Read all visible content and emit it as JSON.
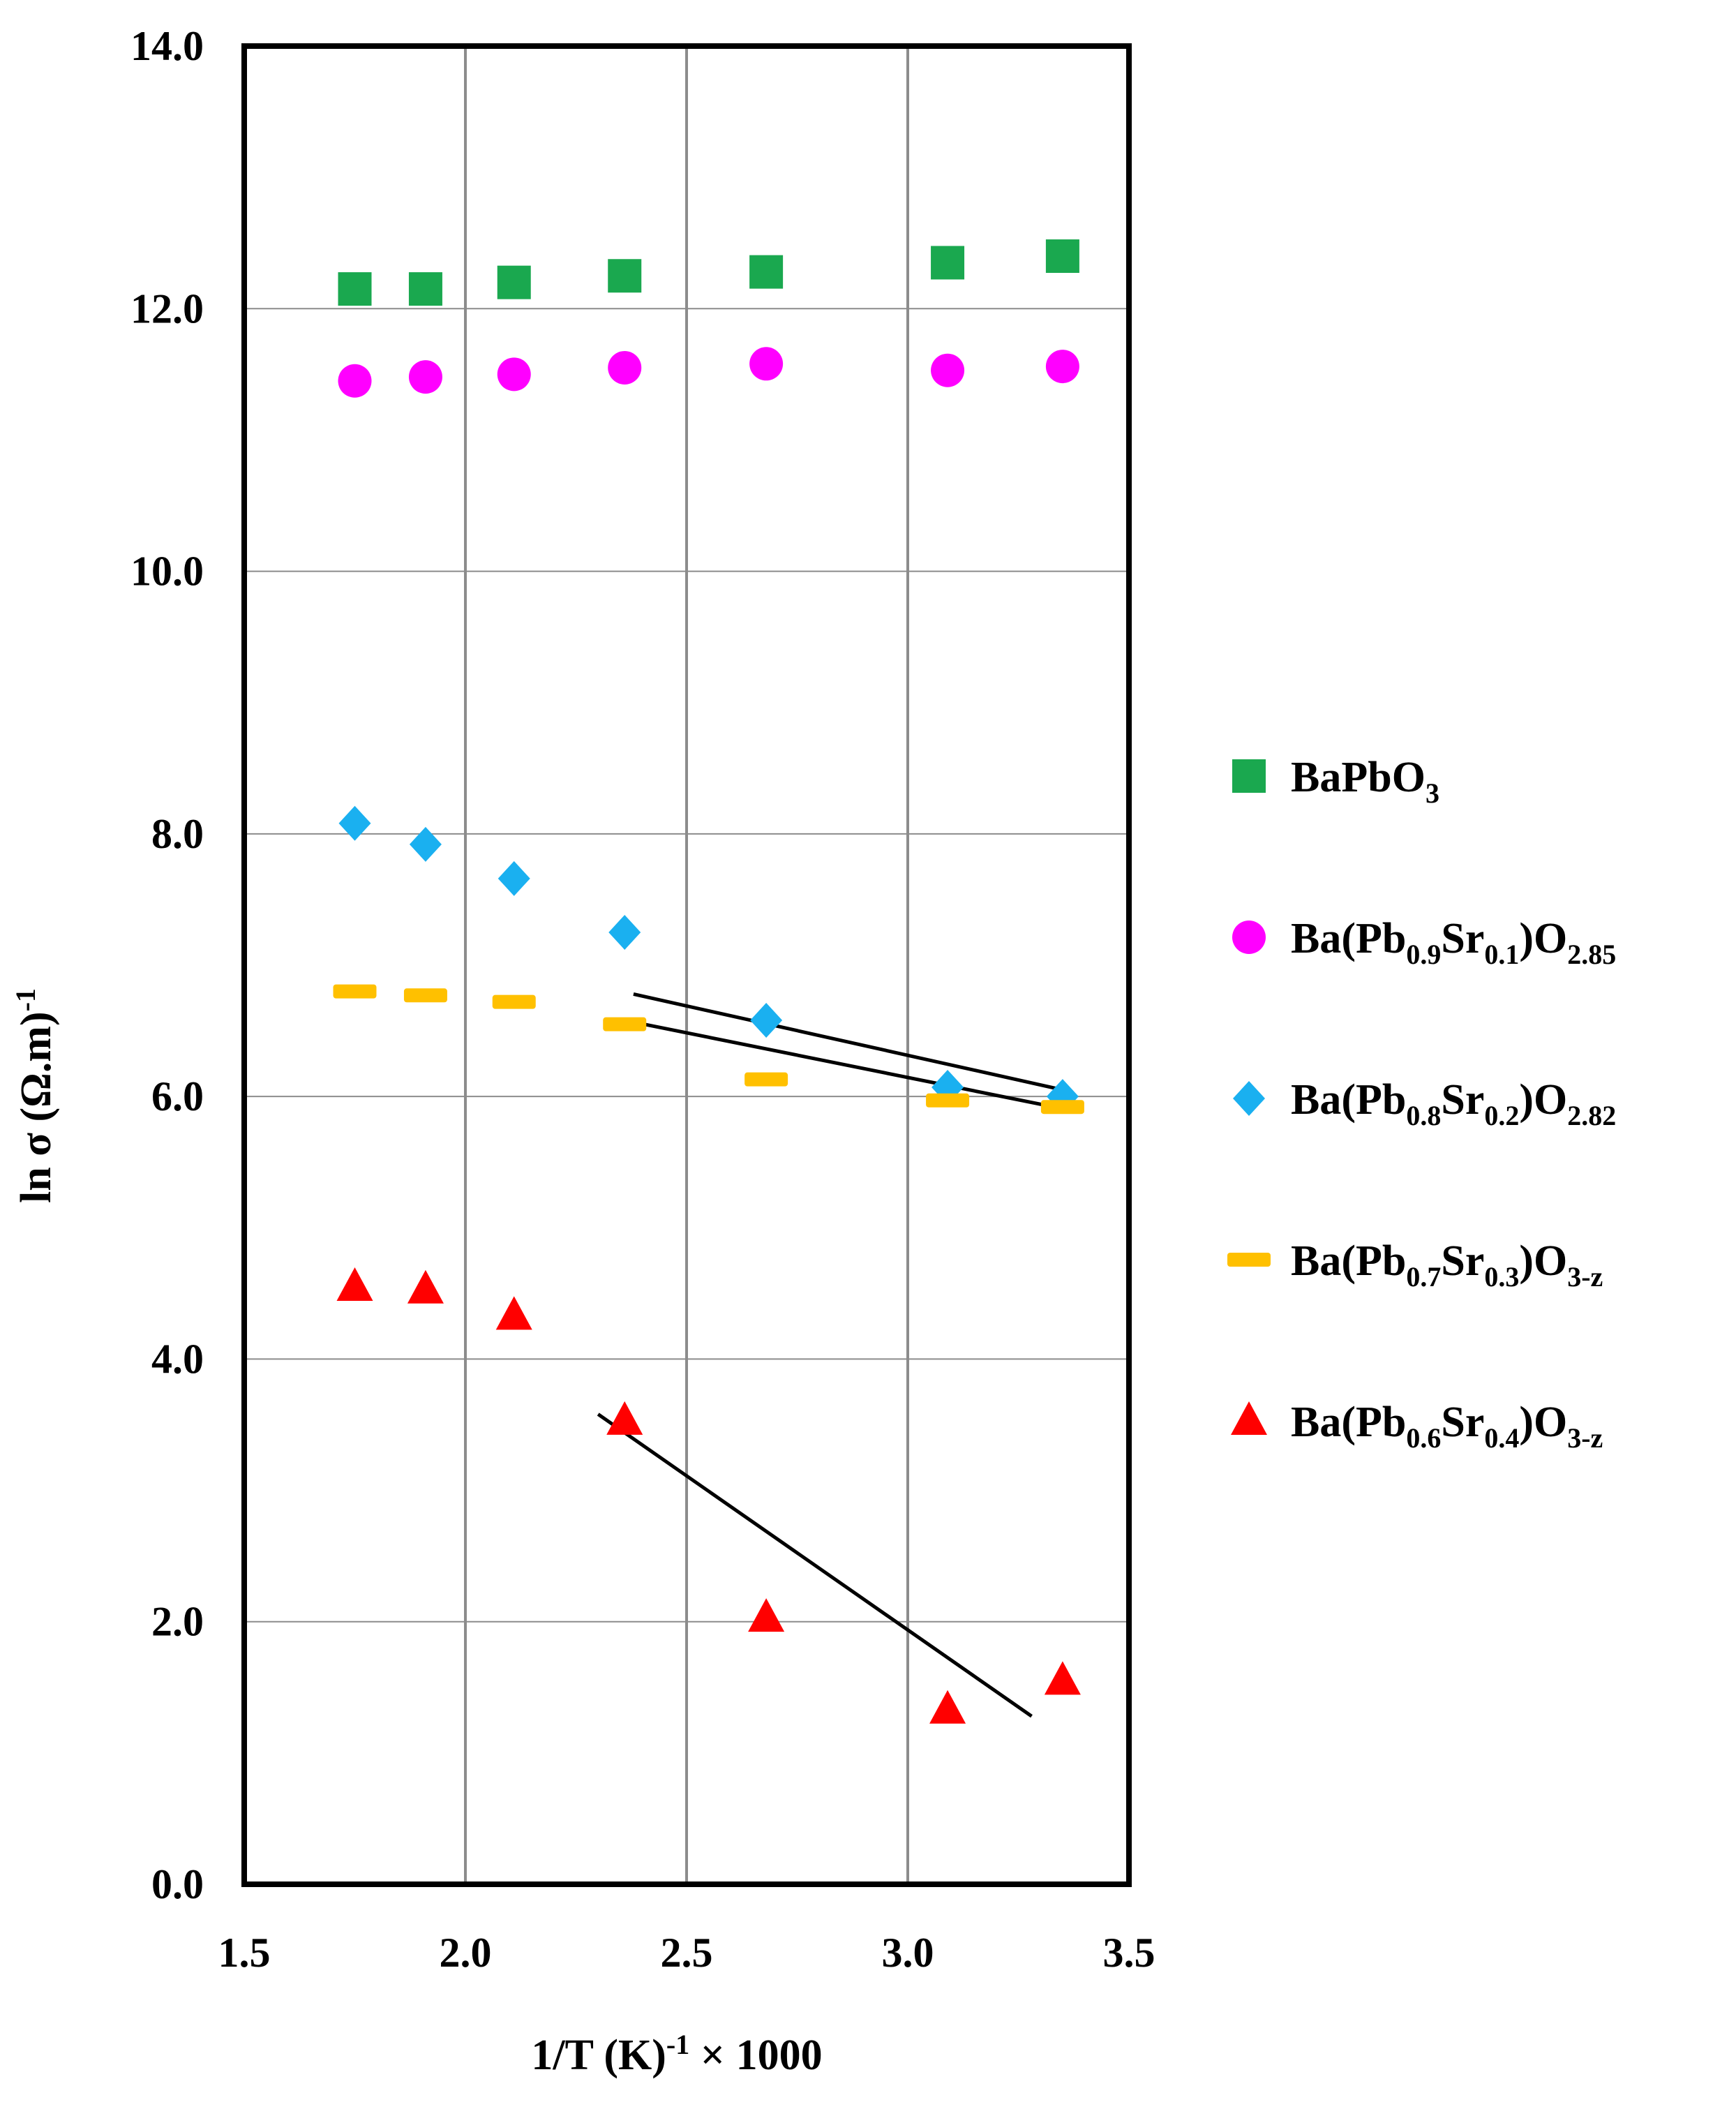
{
  "chart_data": {
    "type": "scatter",
    "title": "",
    "xlabel": {
      "main": "1/T (K)",
      "sup": "-1",
      "suffix": " × 1000"
    },
    "ylabel": {
      "main": "ln σ (Ω.m)",
      "sup": "-1"
    },
    "xlim": [
      1.5,
      3.5
    ],
    "ylim": [
      0.0,
      14.0
    ],
    "xticks": [
      1.5,
      2.0,
      2.5,
      3.0,
      3.5
    ],
    "yticks": [
      0.0,
      2.0,
      4.0,
      6.0,
      8.0,
      10.0,
      12.0,
      14.0
    ],
    "xtick_labels": [
      "1.5",
      "2.0",
      "2.5",
      "3.0",
      "3.5"
    ],
    "ytick_labels": [
      "0.0",
      "2.0",
      "4.0",
      "6.0",
      "8.0",
      "10.0",
      "12.0",
      "14.0"
    ],
    "grid": {
      "vertical": true,
      "horizontal": true
    },
    "legend_position": "right",
    "series": [
      {
        "name": "BaPbO3",
        "label_parts": [
          [
            "BaPbO",
            ""
          ],
          [
            "3",
            "sub"
          ]
        ],
        "marker": "square",
        "color": "#1aa84f",
        "x": [
          1.75,
          1.91,
          2.11,
          2.36,
          2.68,
          3.09,
          3.35
        ],
        "y": [
          12.15,
          12.15,
          12.2,
          12.25,
          12.28,
          12.35,
          12.4
        ]
      },
      {
        "name": "Ba(Pb0.9Sr0.1)O2.85",
        "label_parts": [
          [
            "Ba(Pb",
            ""
          ],
          [
            "0.9",
            "sub"
          ],
          [
            "Sr",
            ""
          ],
          [
            "0.1",
            "sub"
          ],
          [
            ")O",
            ""
          ],
          [
            "2.85",
            "sub"
          ]
        ],
        "marker": "circle",
        "color": "#ff00ff",
        "x": [
          1.75,
          1.91,
          2.11,
          2.36,
          2.68,
          3.09,
          3.35
        ],
        "y": [
          11.45,
          11.48,
          11.5,
          11.55,
          11.58,
          11.53,
          11.56
        ]
      },
      {
        "name": "Ba(Pb0.8Sr0.2)O2.82",
        "label_parts": [
          [
            "Ba(Pb",
            ""
          ],
          [
            "0.8",
            "sub"
          ],
          [
            "Sr",
            ""
          ],
          [
            "0.2",
            "sub"
          ],
          [
            ")O",
            ""
          ],
          [
            "2.82",
            "sub"
          ]
        ],
        "marker": "diamond",
        "color": "#1ab0f0",
        "x": [
          1.75,
          1.91,
          2.11,
          2.36,
          2.68,
          3.09,
          3.35
        ],
        "y": [
          8.08,
          7.92,
          7.66,
          7.25,
          6.58,
          6.07,
          6.0
        ]
      },
      {
        "name": "Ba(Pb0.7Sr0.3)O3-z",
        "label_parts": [
          [
            "Ba(Pb",
            ""
          ],
          [
            "0.7",
            "sub"
          ],
          [
            "Sr",
            ""
          ],
          [
            "0.3",
            "sub"
          ],
          [
            ")O",
            ""
          ],
          [
            "3-z",
            "sub"
          ]
        ],
        "marker": "dash",
        "color": "#ffc000",
        "x": [
          1.75,
          1.91,
          2.11,
          2.36,
          2.68,
          3.09,
          3.35
        ],
        "y": [
          6.8,
          6.77,
          6.72,
          6.55,
          6.13,
          5.97,
          5.92
        ]
      },
      {
        "name": "Ba(Pb0.6Sr0.4)O3-z",
        "label_parts": [
          [
            "Ba(Pb",
            ""
          ],
          [
            "0.6",
            "sub"
          ],
          [
            "Sr",
            ""
          ],
          [
            "0.4",
            "sub"
          ],
          [
            ")O",
            ""
          ],
          [
            "3-z",
            "sub"
          ]
        ],
        "marker": "triangle",
        "color": "#ff0000",
        "x": [
          1.75,
          1.91,
          2.11,
          2.36,
          2.68,
          3.09,
          3.35
        ],
        "y": [
          4.55,
          4.53,
          4.33,
          3.53,
          2.03,
          1.33,
          1.55
        ]
      }
    ],
    "fit_lines": [
      {
        "name": "fit-diamond",
        "x": [
          2.38,
          3.35
        ],
        "y": [
          6.78,
          6.05
        ]
      },
      {
        "name": "fit-dash",
        "x": [
          2.36,
          3.36
        ],
        "y": [
          6.58,
          5.9
        ]
      },
      {
        "name": "fit-triangle",
        "x": [
          2.3,
          3.28
        ],
        "y": [
          3.58,
          1.28
        ]
      }
    ],
    "fit_line_color": "#000000"
  }
}
